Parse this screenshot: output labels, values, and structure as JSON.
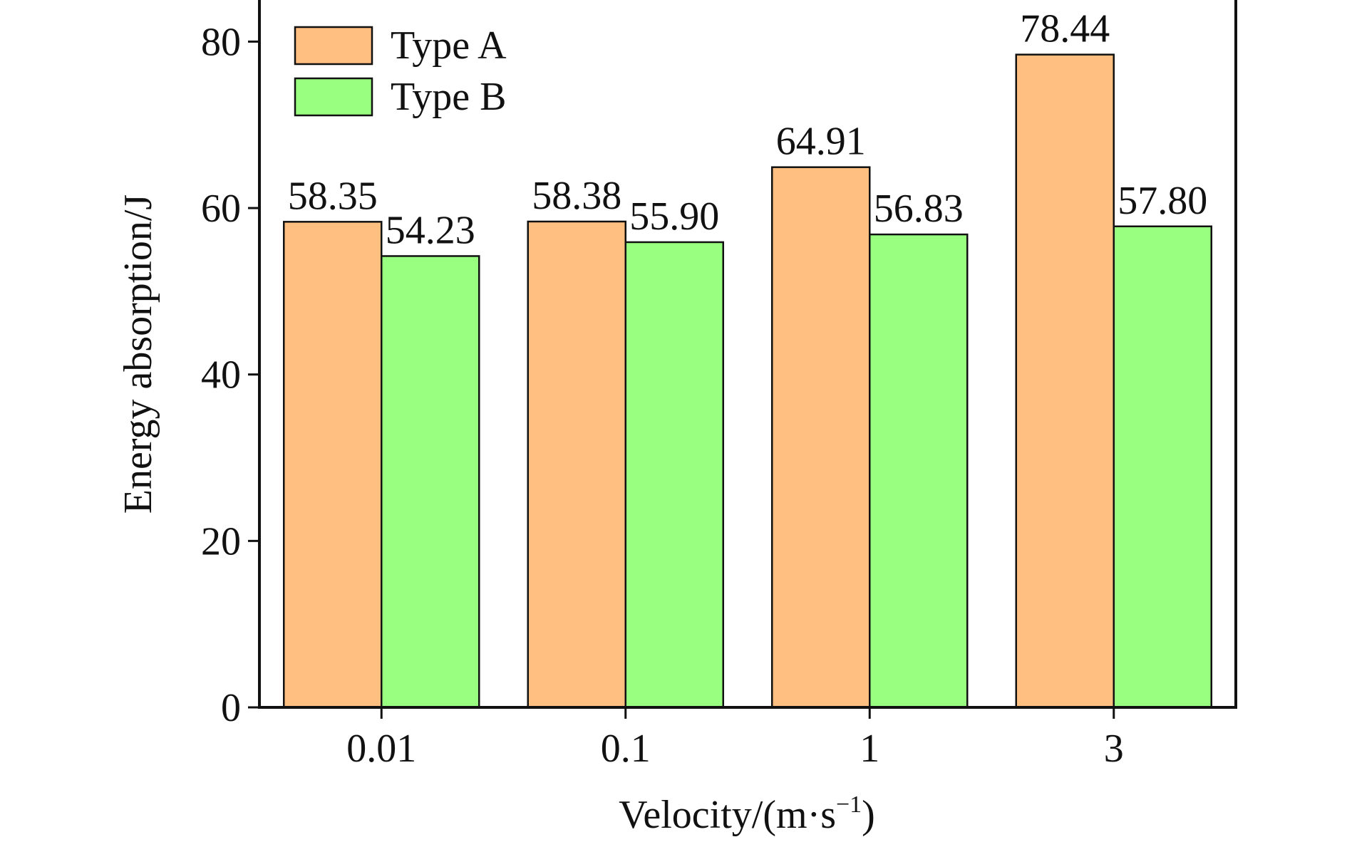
{
  "chart_data": {
    "type": "bar",
    "title": "",
    "xlabel": "Velocity/(m·s",
    "xlabel_sup": "−1",
    "xlabel_end": ")",
    "ylabel": "Energy absorption/J",
    "categories": [
      "0.01",
      "0.1",
      "1",
      "3"
    ],
    "series": [
      {
        "name": "Type A",
        "color": "#FFBF80",
        "values": [
          58.35,
          58.38,
          64.91,
          78.44
        ],
        "labels": [
          "58.35",
          "58.38",
          "64.91",
          "78.44"
        ]
      },
      {
        "name": "Type B",
        "color": "#99FF80",
        "values": [
          54.23,
          55.9,
          56.83,
          57.8
        ],
        "labels": [
          "54.23",
          "55.90",
          "56.83",
          "57.80"
        ]
      }
    ],
    "ylim": [
      0,
      85
    ],
    "yticks": [
      0,
      20,
      40,
      60,
      80
    ],
    "grid": false,
    "legend_position": "top-left"
  }
}
